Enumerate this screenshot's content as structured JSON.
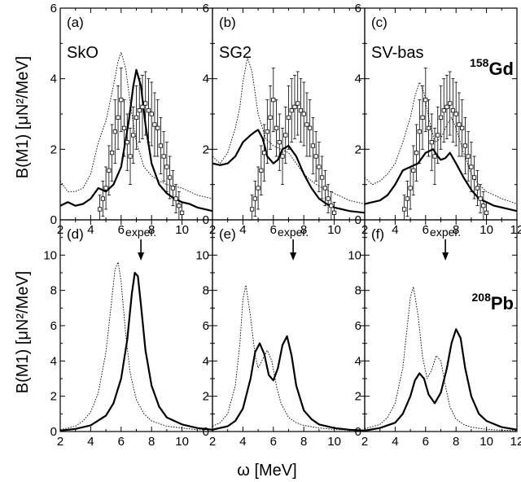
{
  "figure": {
    "xlabel": "ω [MeV]",
    "ylabel_top": "B(M1) [μN²/MeV]",
    "ylabel_bottom": "B(M1) [μN²/MeV]"
  },
  "chart_data": [
    {
      "type": "line",
      "panel": "(a)",
      "model": "SkO",
      "nucleus": "",
      "row": 0,
      "col": 0,
      "xlim": [
        2,
        12
      ],
      "ylim": [
        0,
        6
      ],
      "xticks": [
        "2",
        "4",
        "6",
        "8",
        "10"
      ],
      "yticks": [
        "0",
        "2",
        "4",
        "6"
      ],
      "series": [
        {
          "style": "dotted",
          "x": [
            2,
            2.5,
            3,
            3.5,
            4,
            4.5,
            5,
            5.5,
            5.8,
            6,
            6.3,
            6.6,
            7,
            7.5,
            8,
            8.5,
            9,
            9.5,
            10,
            10.5,
            11,
            12
          ],
          "y": [
            1.1,
            0.8,
            0.8,
            0.9,
            1.3,
            2.2,
            2.8,
            3.8,
            4.5,
            4.75,
            4.3,
            3.3,
            2.2,
            1.5,
            1.25,
            1.1,
            1.0,
            0.95,
            0.9,
            0.8,
            0.7,
            0.6
          ]
        },
        {
          "style": "solid",
          "x": [
            2,
            2.5,
            3,
            3.5,
            4,
            4.5,
            5,
            5.5,
            6,
            6.5,
            6.8,
            7,
            7.3,
            7.6,
            8,
            8.5,
            9,
            9.5,
            10,
            10.5,
            11,
            12
          ],
          "y": [
            0.4,
            0.5,
            0.4,
            0.45,
            0.6,
            0.9,
            0.8,
            1.0,
            1.5,
            2.8,
            3.8,
            4.25,
            3.8,
            2.7,
            1.6,
            1.0,
            0.75,
            0.6,
            0.5,
            0.45,
            0.35,
            0.25
          ]
        },
        {
          "style": "data",
          "x": [
            4.6,
            4.8,
            5.0,
            5.2,
            5.4,
            5.6,
            5.8,
            6.0,
            6.2,
            6.4,
            6.6,
            6.8,
            7.0,
            7.2,
            7.4,
            7.6,
            7.8,
            8.0,
            8.2,
            8.4,
            8.6,
            8.8,
            9.0,
            9.2,
            9.4,
            9.6,
            9.8,
            10.0
          ],
          "y": [
            0.3,
            0.6,
            0.9,
            1.4,
            1.9,
            2.5,
            2.9,
            3.4,
            2.6,
            2.2,
            1.8,
            2.4,
            2.9,
            3.1,
            3.2,
            3.3,
            3.1,
            3.0,
            2.7,
            2.6,
            2.1,
            1.8,
            1.5,
            1.2,
            0.9,
            0.6,
            0.4,
            0.2
          ],
          "err": [
            0.4,
            0.5,
            0.6,
            0.7,
            0.8,
            0.9,
            0.9,
            0.9,
            0.8,
            0.8,
            0.8,
            0.8,
            0.9,
            0.9,
            0.9,
            0.9,
            0.9,
            0.9,
            0.9,
            0.8,
            0.8,
            0.7,
            0.7,
            0.6,
            0.5,
            0.4,
            0.4,
            0.3
          ]
        }
      ]
    },
    {
      "type": "line",
      "panel": "(b)",
      "model": "SG2",
      "nucleus": "",
      "row": 0,
      "col": 1,
      "xlim": [
        2,
        12
      ],
      "ylim": [
        0,
        6
      ],
      "xticks": [
        "2",
        "4",
        "6",
        "8",
        "10"
      ],
      "yticks": [
        "0",
        "2",
        "4",
        "6"
      ],
      "series": [
        {
          "style": "dotted",
          "x": [
            2,
            2.5,
            3,
            3.5,
            3.8,
            4,
            4.3,
            4.6,
            5,
            5.5,
            6,
            6.5,
            7,
            7.5,
            8,
            8.5,
            9,
            9.5,
            10,
            10.5,
            11,
            12
          ],
          "y": [
            1.8,
            1.6,
            1.9,
            2.6,
            3.2,
            3.9,
            4.6,
            4.2,
            3.0,
            2.3,
            2.1,
            2.0,
            1.9,
            1.6,
            1.3,
            1.1,
            0.95,
            0.85,
            0.75,
            0.65,
            0.55,
            0.45
          ]
        },
        {
          "style": "solid",
          "x": [
            2,
            2.5,
            3,
            3.5,
            4,
            4.5,
            4.8,
            5,
            5.3,
            5.6,
            6,
            6.3,
            6.6,
            7,
            7.5,
            8,
            8.5,
            9,
            9.5,
            10,
            11,
            12
          ],
          "y": [
            1.6,
            1.55,
            1.6,
            1.8,
            2.2,
            2.4,
            2.5,
            2.55,
            2.3,
            1.8,
            1.6,
            1.7,
            2.0,
            2.1,
            1.8,
            1.3,
            0.9,
            0.6,
            0.45,
            0.35,
            0.25,
            0.2
          ]
        },
        {
          "style": "data",
          "x": [
            4.6,
            4.8,
            5.0,
            5.2,
            5.4,
            5.6,
            5.8,
            6.0,
            6.2,
            6.4,
            6.6,
            6.8,
            7.0,
            7.2,
            7.4,
            7.6,
            7.8,
            8.0,
            8.2,
            8.4,
            8.6,
            8.8,
            9.0,
            9.2,
            9.4,
            9.6,
            9.8,
            10.0
          ],
          "y": [
            0.3,
            0.6,
            0.9,
            1.4,
            1.9,
            2.5,
            2.9,
            3.4,
            2.6,
            2.2,
            1.8,
            2.4,
            2.9,
            3.1,
            3.2,
            3.3,
            3.1,
            3.0,
            2.7,
            2.6,
            2.1,
            1.8,
            1.5,
            1.2,
            0.9,
            0.6,
            0.4,
            0.2
          ],
          "err": [
            0.4,
            0.5,
            0.6,
            0.7,
            0.8,
            0.9,
            0.9,
            0.9,
            0.8,
            0.8,
            0.8,
            0.8,
            0.9,
            0.9,
            0.9,
            0.9,
            0.9,
            0.9,
            0.9,
            0.8,
            0.8,
            0.7,
            0.7,
            0.6,
            0.5,
            0.4,
            0.4,
            0.3
          ]
        }
      ]
    },
    {
      "type": "line",
      "panel": "(c)",
      "model": "SV-bas",
      "nucleus": "158Gd",
      "row": 0,
      "col": 2,
      "xlim": [
        2,
        12
      ],
      "ylim": [
        0,
        6
      ],
      "xticks": [
        "2",
        "4",
        "6",
        "8",
        "10",
        "12"
      ],
      "yticks": [
        "0",
        "2",
        "4",
        "6"
      ],
      "series": [
        {
          "style": "dotted",
          "x": [
            2,
            2.5,
            3,
            3.5,
            4,
            4.5,
            5,
            5.3,
            5.6,
            5.9,
            6.2,
            6.6,
            7,
            7.4,
            7.7,
            8,
            8.5,
            9,
            9.5,
            10,
            11,
            12
          ],
          "y": [
            1.2,
            1.0,
            1.1,
            1.3,
            1.6,
            2.2,
            2.9,
            3.5,
            3.9,
            3.6,
            2.9,
            2.2,
            2.3,
            2.7,
            2.9,
            2.6,
            1.9,
            1.3,
            1.0,
            0.8,
            0.6,
            0.45
          ]
        },
        {
          "style": "solid",
          "x": [
            2,
            2.5,
            3,
            3.5,
            4,
            4.5,
            5,
            5.5,
            6,
            6.5,
            6.8,
            7,
            7.3,
            7.6,
            8,
            8.5,
            9,
            9.5,
            10,
            10.5,
            11,
            12
          ],
          "y": [
            0.45,
            0.5,
            0.55,
            0.7,
            1.0,
            1.4,
            1.5,
            1.6,
            1.9,
            2.0,
            1.8,
            1.7,
            1.75,
            1.9,
            1.6,
            1.2,
            0.85,
            0.6,
            0.5,
            0.4,
            0.35,
            0.25
          ]
        },
        {
          "style": "data",
          "x": [
            4.6,
            4.8,
            5.0,
            5.2,
            5.4,
            5.6,
            5.8,
            6.0,
            6.2,
            6.4,
            6.6,
            6.8,
            7.0,
            7.2,
            7.4,
            7.6,
            7.8,
            8.0,
            8.2,
            8.4,
            8.6,
            8.8,
            9.0,
            9.2,
            9.4,
            9.6,
            9.8,
            10.0
          ],
          "y": [
            0.3,
            0.6,
            0.9,
            1.4,
            1.9,
            2.5,
            2.9,
            3.4,
            2.6,
            2.2,
            1.8,
            2.4,
            2.9,
            3.1,
            3.2,
            3.3,
            3.1,
            3.0,
            2.7,
            2.6,
            2.1,
            1.8,
            1.5,
            1.2,
            0.9,
            0.6,
            0.4,
            0.2
          ],
          "err": [
            0.4,
            0.5,
            0.6,
            0.7,
            0.8,
            0.9,
            0.9,
            0.9,
            0.8,
            0.8,
            0.8,
            0.8,
            0.9,
            0.9,
            0.9,
            0.9,
            0.9,
            0.9,
            0.9,
            0.8,
            0.8,
            0.7,
            0.7,
            0.6,
            0.5,
            0.4,
            0.4,
            0.3
          ]
        }
      ]
    },
    {
      "type": "line",
      "panel": "(d)",
      "model": "",
      "nucleus": "",
      "row": 1,
      "col": 0,
      "xlim": [
        2,
        12
      ],
      "ylim": [
        0,
        12
      ],
      "xticks": [
        "2",
        "4",
        "6",
        "8",
        "10"
      ],
      "yticks": [
        "0",
        "2",
        "4",
        "6",
        "8",
        "10"
      ],
      "exper": {
        "label": "exper.",
        "x": 7.3
      },
      "series": [
        {
          "style": "dotted",
          "x": [
            2,
            3,
            3.5,
            4,
            4.5,
            5,
            5.3,
            5.6,
            5.8,
            6,
            6.3,
            6.6,
            7,
            7.5,
            8,
            9,
            10,
            11,
            12
          ],
          "y": [
            0.1,
            0.3,
            0.6,
            1.1,
            2.2,
            4.5,
            6.8,
            9.2,
            9.6,
            8.5,
            5.5,
            3.3,
            1.8,
            1.0,
            0.6,
            0.3,
            0.2,
            0.1,
            0.1
          ]
        },
        {
          "style": "solid",
          "x": [
            2,
            3,
            4,
            5,
            5.5,
            6,
            6.4,
            6.7,
            6.9,
            7.1,
            7.3,
            7.6,
            8,
            8.5,
            9,
            10,
            11,
            12
          ],
          "y": [
            0.05,
            0.15,
            0.35,
            0.9,
            1.6,
            3.0,
            5.2,
            7.8,
            9.0,
            8.8,
            7.2,
            4.6,
            2.6,
            1.4,
            0.8,
            0.4,
            0.2,
            0.1
          ]
        }
      ]
    },
    {
      "type": "line",
      "panel": "(e)",
      "model": "",
      "nucleus": "",
      "row": 1,
      "col": 1,
      "xlim": [
        2,
        12
      ],
      "ylim": [
        0,
        12
      ],
      "xticks": [
        "2",
        "4",
        "6",
        "8",
        "10"
      ],
      "yticks": [
        "0",
        "2",
        "4",
        "6",
        "8",
        "10"
      ],
      "exper": {
        "label": "exper.",
        "x": 7.3
      },
      "series": [
        {
          "style": "dotted",
          "x": [
            2,
            2.5,
            3,
            3.5,
            3.8,
            4,
            4.2,
            4.5,
            4.8,
            5,
            5.3,
            5.6,
            5.9,
            6.2,
            6.5,
            7,
            7.5,
            8,
            9,
            10,
            11,
            12
          ],
          "y": [
            0.3,
            0.5,
            1.0,
            2.6,
            5.0,
            7.5,
            8.3,
            6.5,
            4.3,
            3.6,
            4.1,
            4.6,
            4.0,
            2.6,
            1.6,
            0.8,
            0.5,
            0.35,
            0.2,
            0.12,
            0.08,
            0.05
          ]
        },
        {
          "style": "solid",
          "x": [
            2,
            3,
            3.5,
            4,
            4.5,
            4.8,
            5.1,
            5.4,
            5.7,
            6,
            6.3,
            6.6,
            6.9,
            7.2,
            7.5,
            8,
            8.5,
            9,
            10,
            11,
            12
          ],
          "y": [
            0.1,
            0.3,
            0.6,
            1.3,
            3.0,
            4.5,
            5.0,
            4.4,
            3.2,
            2.9,
            3.6,
            4.9,
            5.4,
            4.3,
            2.6,
            1.2,
            0.7,
            0.4,
            0.2,
            0.1,
            0.05
          ]
        }
      ]
    },
    {
      "type": "line",
      "panel": "(f)",
      "model": "",
      "nucleus": "208Pb",
      "row": 1,
      "col": 2,
      "xlim": [
        2,
        12
      ],
      "ylim": [
        0,
        12
      ],
      "xticks": [
        "2",
        "4",
        "6",
        "8",
        "10",
        "12"
      ],
      "yticks": [
        "0",
        "2",
        "4",
        "6",
        "8",
        "10"
      ],
      "exper": {
        "label": "exper.",
        "x": 7.3
      },
      "series": [
        {
          "style": "dotted",
          "x": [
            2,
            3,
            3.5,
            4,
            4.5,
            4.8,
            5,
            5.2,
            5.5,
            5.8,
            6.1,
            6.4,
            6.7,
            7,
            7.3,
            7.6,
            8,
            8.5,
            9,
            10,
            11,
            12
          ],
          "y": [
            0.15,
            0.4,
            0.8,
            1.6,
            3.6,
            6.0,
            7.6,
            8.2,
            6.6,
            4.2,
            3.0,
            3.5,
            4.3,
            4.0,
            2.6,
            1.4,
            0.7,
            0.4,
            0.25,
            0.12,
            0.08,
            0.05
          ]
        },
        {
          "style": "solid",
          "x": [
            2,
            3,
            4,
            4.5,
            5,
            5.3,
            5.6,
            5.9,
            6.2,
            6.6,
            7,
            7.4,
            7.7,
            8,
            8.3,
            8.6,
            9,
            9.5,
            10,
            11,
            12
          ],
          "y": [
            0.05,
            0.2,
            0.5,
            1.0,
            2.0,
            2.9,
            3.3,
            3.0,
            2.1,
            1.6,
            2.2,
            3.6,
            5.0,
            5.8,
            5.3,
            3.6,
            2.0,
            1.0,
            0.6,
            0.25,
            0.1
          ]
        }
      ]
    }
  ]
}
